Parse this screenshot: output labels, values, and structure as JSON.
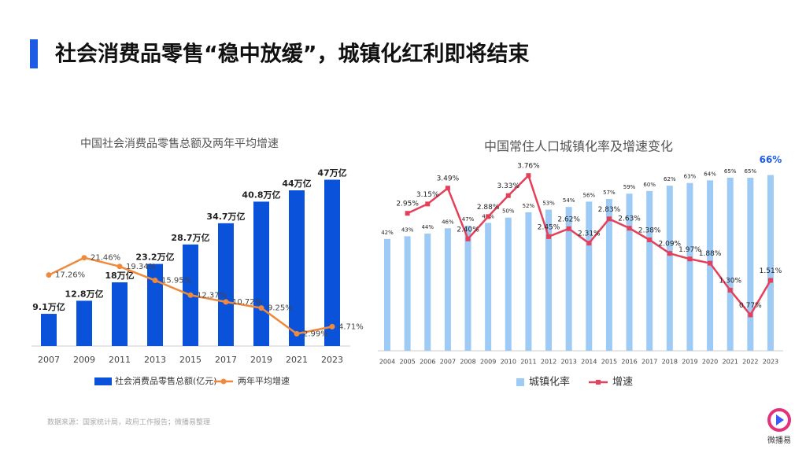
{
  "title": "社会消费品零售“稳中放缓”，城镇化红利即将结束",
  "source": "数据来源：国家统计局，政府工作报告；微播易整理",
  "logo": "微播易",
  "chart_data": [
    {
      "type": "combo",
      "title": "中国社会消费品零售总额及两年平均增速",
      "categories": [
        "2007",
        "2009",
        "2011",
        "2013",
        "2015",
        "2017",
        "2019",
        "2021",
        "2023"
      ],
      "ylim": [
        0,
        50
      ],
      "y2lim": [
        0,
        43
      ],
      "series": [
        {
          "name": "社会消费品零售总额(亿元)",
          "color": "#0b52db",
          "values": [
            9.1,
            12.8,
            18,
            23.2,
            28.7,
            34.7,
            40.8,
            44,
            47
          ],
          "value_labels": [
            "9.1万亿",
            "12.8万亿",
            "18万亿",
            "23.2万亿",
            "28.7万亿",
            "34.7万亿",
            "40.8万亿",
            "44万亿",
            "47万亿"
          ]
        },
        {
          "name": "两年平均增速",
          "color": "#ef8a3c",
          "axis": "y2",
          "values": [
            17.26,
            21.46,
            19.34,
            15.95,
            12.37,
            10.72,
            9.25,
            2.99,
            4.71
          ],
          "value_labels": [
            "17.26%",
            "21.46%",
            "19.34%",
            "15.95%",
            "12.37%",
            "10.72%",
            "9.25%",
            "2.99%",
            "4.71%"
          ]
        }
      ]
    },
    {
      "type": "combo",
      "title": "中国常住人口城镇化率及增速变化",
      "categories": [
        "2004",
        "2005",
        "2006",
        "2007",
        "2008",
        "2009",
        "2010",
        "2011",
        "2012",
        "2013",
        "2014",
        "2015",
        "2016",
        "2017",
        "2018",
        "2019",
        "2020",
        "2021",
        "2022",
        "2023"
      ],
      "ylim": [
        0,
        70
      ],
      "y2lim": [
        0,
        4
      ],
      "series": [
        {
          "name": "城镇化率",
          "color": "#9dcbf5",
          "values": [
            42,
            43,
            44,
            46,
            47,
            48,
            50,
            52,
            53,
            54,
            56,
            57,
            59,
            60,
            62,
            63,
            64,
            65,
            65,
            66
          ],
          "value_labels": [
            "42%",
            "43%",
            "44%",
            "46%",
            "47%",
            "48%",
            "50%",
            "52%",
            "53%",
            "54%",
            "56%",
            "57%",
            "59%",
            "60%",
            "62%",
            "63%",
            "64%",
            "65%",
            "65%",
            "66%"
          ]
        },
        {
          "name": "增速",
          "color": "#e5405a",
          "axis": "y2",
          "values": [
            null,
            2.95,
            3.15,
            3.49,
            2.4,
            2.88,
            3.33,
            3.76,
            2.45,
            2.62,
            2.31,
            2.83,
            2.63,
            2.38,
            2.09,
            1.97,
            1.88,
            1.3,
            0.77,
            1.51
          ],
          "value_labels": [
            null,
            "2.95%",
            "3.15%",
            "3.49%",
            "2.40%",
            "2.88%",
            "3.33%",
            "3.76%",
            "2.45%",
            "2.62%",
            "2.31%",
            "2.83%",
            "2.63%",
            "2.38%",
            "2.09%",
            "1.97%",
            "1.88%",
            "1.30%",
            "0.77%",
            "1.51%"
          ]
        }
      ]
    }
  ]
}
